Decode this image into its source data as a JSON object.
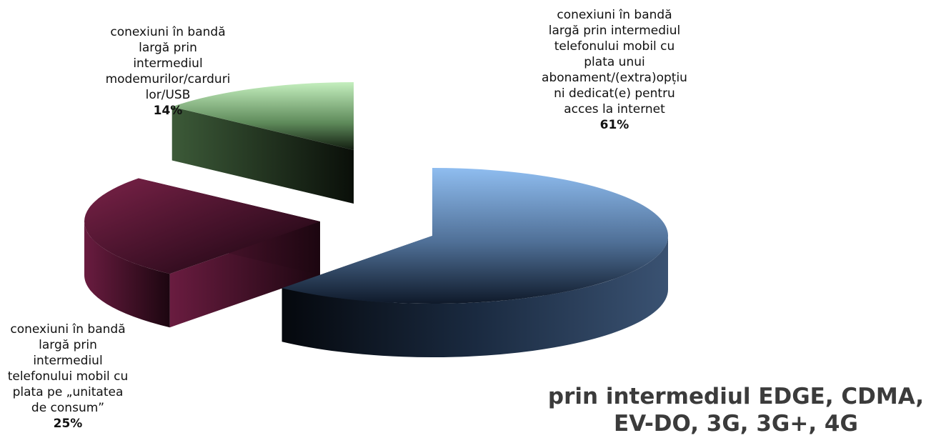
{
  "chart_data": {
    "type": "pie",
    "style": "3d-exploded",
    "title": "",
    "slices": [
      {
        "label_lines": [
          "conexiuni în bandă",
          "largă prin intermediul",
          "telefonului mobil cu",
          "plata unui",
          "abonament/(extra)opțiu",
          "ni dedicat(e) pentru",
          "acces la internet"
        ],
        "value": 61,
        "value_label": "61%",
        "color": "#8fb8e8"
      },
      {
        "label_lines": [
          "conexiuni în bandă",
          "largă prin",
          "intermediul",
          "telefonului mobil cu",
          "plata pe „unitatea",
          "de consum”"
        ],
        "value": 25,
        "value_label": "25%",
        "color": "#6e1f44"
      },
      {
        "label_lines": [
          "conexiuni în bandă",
          "largă prin",
          "intermediul",
          "modemurilor/carduri",
          "lor/USB"
        ],
        "value": 14,
        "value_label": "14%",
        "color": "#b6e6b0"
      }
    ],
    "legend": "none"
  },
  "footnote": {
    "lines": [
      "prin intermediul EDGE, CDMA,",
      "EV-DO, 3G, 3G+, 4G"
    ]
  }
}
